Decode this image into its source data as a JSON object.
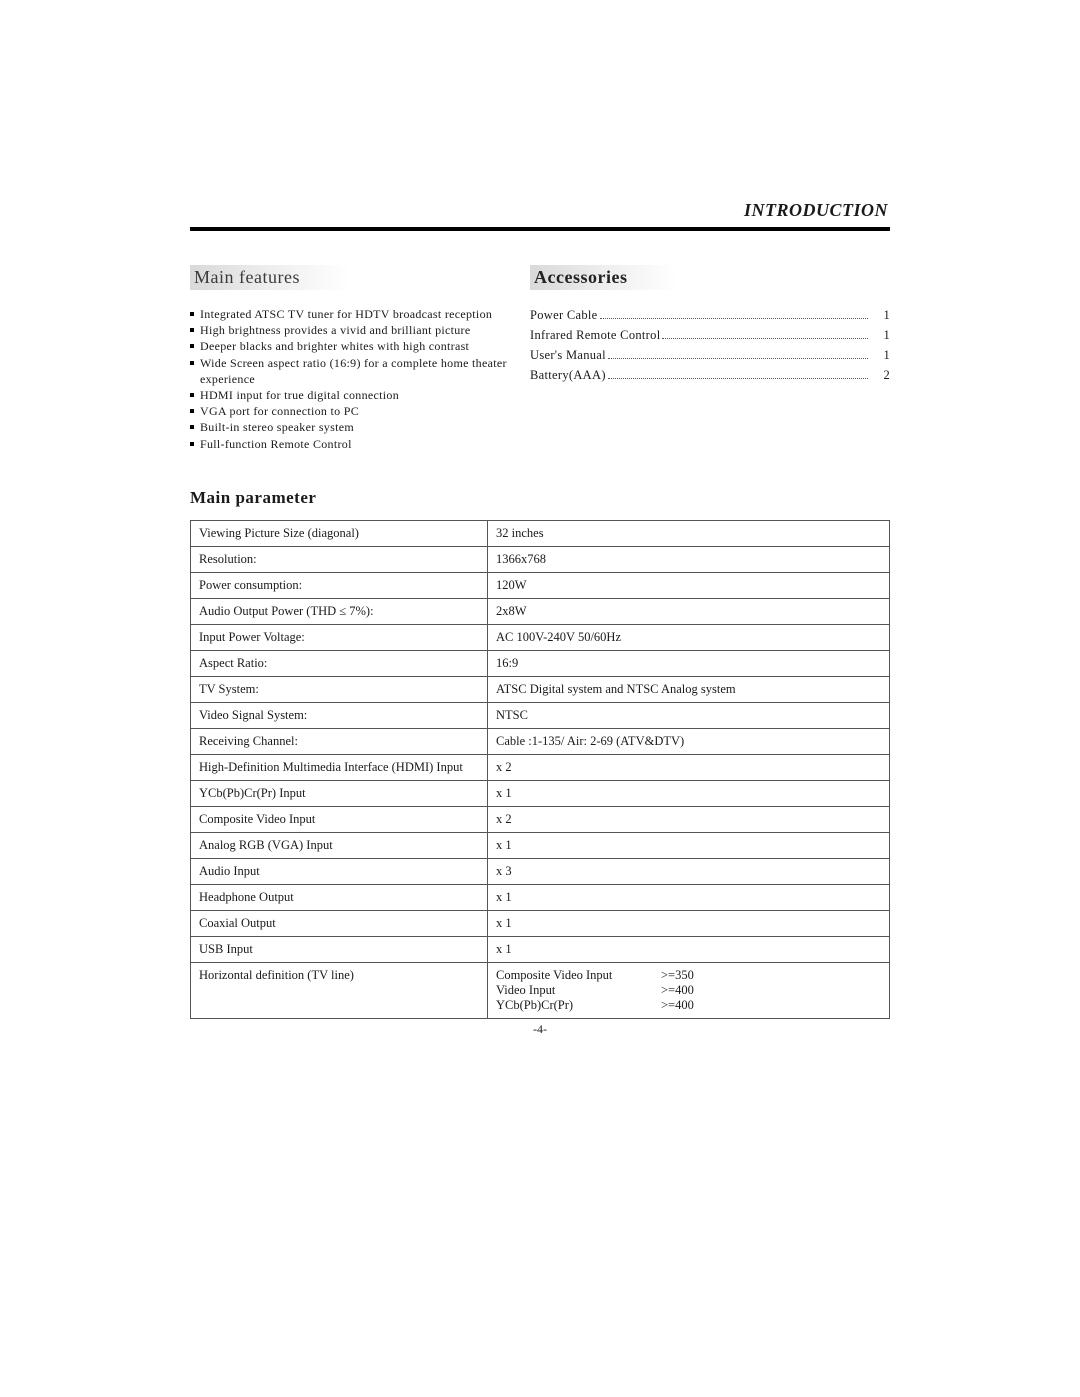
{
  "header": {
    "section_title": "INTRODUCTION"
  },
  "main_features": {
    "heading": "Main features",
    "items": [
      "Integrated ATSC TV tuner for HDTV broadcast reception",
      "High brightness provides a vivid and brilliant picture",
      "Deeper blacks and brighter whites with high contrast",
      "Wide Screen aspect ratio (16:9) for a complete home theater experience",
      "HDMI input for true digital connection",
      "VGA port for connection to PC",
      "Built-in stereo speaker system",
      "Full-function Remote Control"
    ]
  },
  "accessories": {
    "heading": "Accessories",
    "items": [
      {
        "label": "Power Cable",
        "qty": "1"
      },
      {
        "label": "Infrared Remote Control",
        "qty": "1"
      },
      {
        "label": "User's Manual",
        "qty": "1"
      },
      {
        "label": "Battery(AAA)",
        "qty": "2"
      }
    ]
  },
  "main_parameter": {
    "heading": "Main  parameter",
    "rows": [
      {
        "label": "Viewing Picture Size (diagonal)",
        "value": "32 inches"
      },
      {
        "label": "Resolution:",
        "value": "1366x768"
      },
      {
        "label": "Power consumption:",
        "value": "120W"
      },
      {
        "label": "Audio Output Power (THD ≤ 7%):",
        "value": "2x8W"
      },
      {
        "label": "Input Power Voltage:",
        "value": "AC 100V-240V 50/60Hz"
      },
      {
        "label": "Aspect Ratio:",
        "value": "16:9"
      },
      {
        "label": "TV System:",
        "value": "ATSC Digital system and NTSC Analog system"
      },
      {
        "label": "Video Signal System:",
        "value": "NTSC"
      },
      {
        "label": "Receiving Channel:",
        "value": "Cable :1-135/ Air: 2-69 (ATV&DTV)"
      },
      {
        "label": "High-Definition Multimedia Interface (HDMI) Input",
        "value": "x 2"
      },
      {
        "label": "YCb(Pb)Cr(Pr) Input",
        "value": "x 1"
      },
      {
        "label": "Composite Video Input",
        "value": "x 2"
      },
      {
        "label": "Analog RGB (VGA) Input",
        "value": "x 1"
      },
      {
        "label": "Audio Input",
        "value": "x 3"
      },
      {
        "label": "Headphone Output",
        "value": "x 1"
      },
      {
        "label": "Coaxial Output",
        "value": "x 1"
      },
      {
        "label": "USB Input",
        "value": "x 1"
      }
    ],
    "hdef": {
      "label": "Horizontal definition (TV line)",
      "lines": [
        {
          "key": "Composite Video Input",
          "val": ">=350"
        },
        {
          "key": "Video Input",
          "val": ">=400"
        },
        {
          "key": "YCb(Pb)Cr(Pr)",
          "val": ">=400"
        }
      ]
    }
  },
  "page_number": "-4-"
}
